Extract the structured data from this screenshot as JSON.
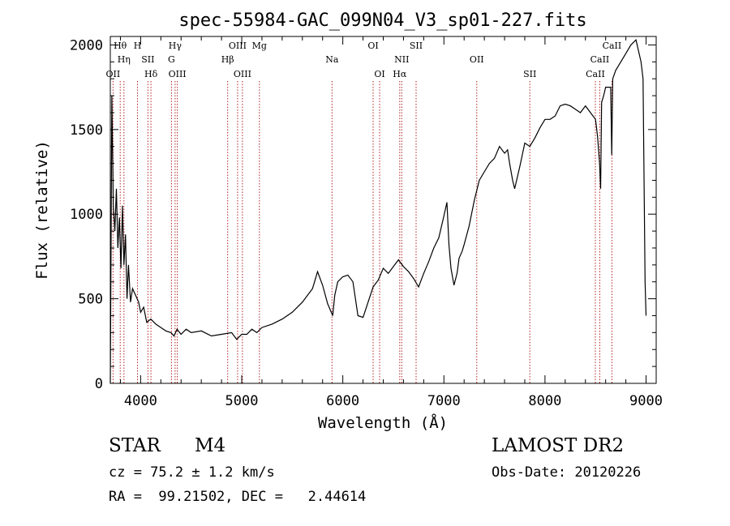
{
  "chart_data": {
    "type": "line",
    "title": "spec-55984-GAC_099N04_V3_sp01-227.fits",
    "xlabel": "Wavelength (Å)",
    "ylabel": "Flux (relative)",
    "xlim": [
      3700,
      9100
    ],
    "ylim": [
      0,
      2050
    ],
    "x_ticks": [
      4000,
      5000,
      6000,
      7000,
      8000,
      9000
    ],
    "x_tick_labels": [
      "4000",
      "5000",
      "6000",
      "7000",
      "8000",
      "9000"
    ],
    "y_ticks": [
      0,
      500,
      1000,
      1500,
      2000
    ],
    "y_tick_labels": [
      "0",
      "500",
      "1000",
      "1500",
      "2000"
    ],
    "grid": false,
    "series": [
      {
        "x": [
          3700,
          3715,
          3730,
          3745,
          3760,
          3775,
          3790,
          3805,
          3820,
          3835,
          3850,
          3865,
          3880,
          3900,
          3920,
          3950,
          3980,
          4000,
          4030,
          4060,
          4100,
          4150,
          4200,
          4250,
          4300,
          4330,
          4360,
          4400,
          4450,
          4500,
          4600,
          4700,
          4800,
          4900,
          4950,
          5000,
          5050,
          5100,
          5150,
          5200,
          5300,
          5400,
          5500,
          5600,
          5700,
          5750,
          5800,
          5850,
          5900,
          5920,
          5950,
          6000,
          6050,
          6100,
          6150,
          6200,
          6250,
          6300,
          6350,
          6400,
          6450,
          6500,
          6550,
          6600,
          6650,
          6700,
          6750,
          6800,
          6850,
          6900,
          6950,
          7000,
          7030,
          7050,
          7070,
          7100,
          7130,
          7150,
          7180,
          7200,
          7250,
          7300,
          7350,
          7400,
          7450,
          7500,
          7550,
          7600,
          7630,
          7650,
          7680,
          7700,
          7750,
          7800,
          7850,
          7900,
          7950,
          8000,
          8050,
          8100,
          8150,
          8200,
          8250,
          8300,
          8350,
          8400,
          8450,
          8500,
          8520,
          8540,
          8550,
          8560,
          8580,
          8600,
          8650,
          8660,
          8670,
          8700,
          8750,
          8800,
          8850,
          8900,
          8950,
          8970,
          8990,
          9000
        ],
        "y": [
          0,
          1700,
          1050,
          900,
          1150,
          800,
          980,
          680,
          1050,
          700,
          880,
          500,
          700,
          480,
          560,
          520,
          480,
          420,
          450,
          360,
          380,
          350,
          330,
          310,
          300,
          280,
          320,
          290,
          320,
          300,
          310,
          280,
          290,
          300,
          260,
          290,
          290,
          320,
          300,
          330,
          350,
          380,
          420,
          480,
          560,
          660,
          580,
          470,
          400,
          520,
          600,
          630,
          640,
          600,
          400,
          390,
          480,
          570,
          610,
          680,
          650,
          690,
          730,
          690,
          660,
          620,
          570,
          650,
          720,
          800,
          860,
          990,
          1070,
          820,
          680,
          580,
          650,
          740,
          780,
          820,
          930,
          1080,
          1200,
          1250,
          1300,
          1330,
          1400,
          1360,
          1380,
          1300,
          1200,
          1150,
          1280,
          1420,
          1400,
          1450,
          1510,
          1560,
          1560,
          1580,
          1640,
          1650,
          1640,
          1620,
          1600,
          1640,
          1600,
          1560,
          1460,
          1300,
          1150,
          1660,
          1700,
          1750,
          1750,
          1350,
          1800,
          1850,
          1900,
          1950,
          2000,
          2030,
          1900,
          1800,
          600,
          400
        ]
      }
    ],
    "lines": [
      {
        "label": "Hθ",
        "x": 3798
      },
      {
        "label": "Hη",
        "x": 3835
      },
      {
        "label": "OII",
        "x": 3727
      },
      {
        "label": "H",
        "x": 3969
      },
      {
        "label": "SII",
        "x": 4072
      },
      {
        "label": "Hδ",
        "x": 4102
      },
      {
        "label": "Hγ",
        "x": 4341
      },
      {
        "label": "G",
        "x": 4305
      },
      {
        "label": "OIII",
        "x": 4363
      },
      {
        "label": "OIII",
        "x": 4959
      },
      {
        "label": "Hβ",
        "x": 4861
      },
      {
        "label": "OIII",
        "x": 5007
      },
      {
        "label": "Mg",
        "x": 5175
      },
      {
        "label": "Na",
        "x": 5893
      },
      {
        "label": "OI",
        "x": 6364
      },
      {
        "label": "OI",
        "x": 6300
      },
      {
        "label": "NII",
        "x": 6583
      },
      {
        "label": "Hα",
        "x": 6563
      },
      {
        "label": "SII",
        "x": 6725
      },
      {
        "label": "OII",
        "x": 7325
      },
      {
        "label": "SII",
        "x": 7850
      },
      {
        "label": "CaII",
        "x": 8662
      },
      {
        "label": "CaII",
        "x": 8542
      },
      {
        "label": "CaII",
        "x": 8498
      }
    ]
  },
  "footer": {
    "object_class": "STAR",
    "subclass": "M4",
    "survey": "LAMOST DR2",
    "cz": "cz = 75.2 ± 1.2 km/s",
    "obs_date": "Obs-Date: 20120226",
    "coords": "RA =  99.21502, DEC =   2.44614"
  }
}
